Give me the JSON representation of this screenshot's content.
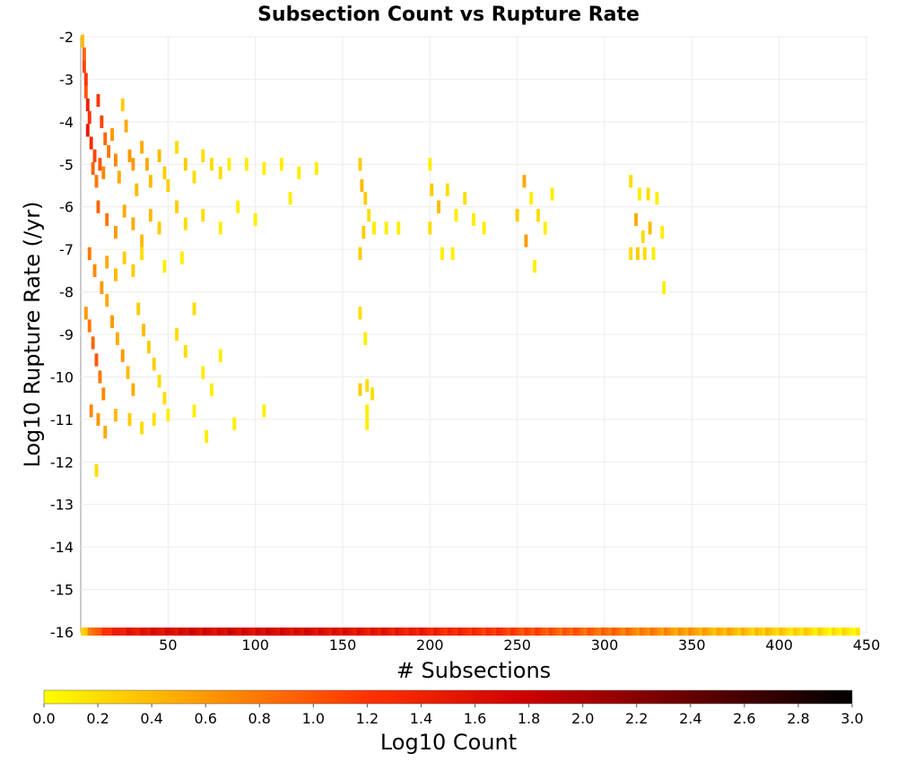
{
  "chart_data": {
    "type": "heatmap",
    "title": "Subsection Count vs Rupture Rate",
    "xlabel": "# Subsections",
    "ylabel": "Log10 Rupture Rate (/yr)",
    "xlim": [
      0,
      450
    ],
    "ylim": [
      -16,
      -2
    ],
    "x_ticks": [
      "50",
      "100",
      "150",
      "200",
      "250",
      "300",
      "350",
      "400",
      "450"
    ],
    "y_ticks": [
      "-2",
      "-3",
      "-4",
      "-5",
      "-6",
      "-7",
      "-8",
      "-9",
      "-10",
      "-11",
      "-12",
      "-13",
      "-14",
      "-15",
      "-16"
    ],
    "grid": true,
    "colorbar": {
      "label": "Log10 Count",
      "range": [
        0,
        3
      ],
      "ticks": [
        "0.0",
        "0.2",
        "0.4",
        "0.6",
        "0.8",
        "1.0",
        "1.2",
        "1.4",
        "1.6",
        "1.8",
        "2.0",
        "2.2",
        "2.4",
        "2.6",
        "2.8",
        "3.0"
      ],
      "colors": [
        "#ffff00",
        "#ff9900",
        "#ff3300",
        "#cc0000",
        "#660000",
        "#000000"
      ]
    },
    "cells": [
      [
        1,
        -2.1,
        0.4
      ],
      [
        2,
        -2.4,
        0.9
      ],
      [
        2,
        -2.7,
        1.1
      ],
      [
        3,
        -3.0,
        1.2
      ],
      [
        3,
        -3.3,
        1.0
      ],
      [
        4,
        -3.6,
        1.4
      ],
      [
        5,
        -3.9,
        1.2
      ],
      [
        4,
        -4.2,
        1.5
      ],
      [
        6,
        -4.5,
        1.3
      ],
      [
        8,
        -4.8,
        1.1
      ],
      [
        7,
        -5.1,
        0.9
      ],
      [
        9,
        -5.4,
        0.8
      ],
      [
        10,
        -3.5,
        1.2
      ],
      [
        12,
        -4.0,
        1.1
      ],
      [
        14,
        -4.4,
        0.9
      ],
      [
        16,
        -4.7,
        0.8
      ],
      [
        11,
        -5.0,
        1.0
      ],
      [
        13,
        -5.2,
        0.7
      ],
      [
        18,
        -4.3,
        0.6
      ],
      [
        20,
        -4.9,
        0.7
      ],
      [
        22,
        -5.3,
        0.5
      ],
      [
        24,
        -3.6,
        0.3
      ],
      [
        26,
        -4.1,
        0.5
      ],
      [
        28,
        -4.8,
        0.6
      ],
      [
        30,
        -5.0,
        0.6
      ],
      [
        32,
        -5.6,
        0.4
      ],
      [
        35,
        -4.6,
        0.5
      ],
      [
        38,
        -5.0,
        0.5
      ],
      [
        40,
        -5.4,
        0.4
      ],
      [
        45,
        -4.8,
        0.4
      ],
      [
        48,
        -5.2,
        0.3
      ],
      [
        50,
        -5.5,
        0.3
      ],
      [
        55,
        -4.6,
        0.2
      ],
      [
        60,
        -5.0,
        0.3
      ],
      [
        65,
        -5.3,
        0.2
      ],
      [
        70,
        -4.8,
        0.2
      ],
      [
        75,
        -5.0,
        0.2
      ],
      [
        80,
        -5.2,
        0.2
      ],
      [
        85,
        -5.0,
        0.1
      ],
      [
        95,
        -5.0,
        0.1
      ],
      [
        105,
        -5.1,
        0.1
      ],
      [
        115,
        -5.0,
        0.1
      ],
      [
        125,
        -5.2,
        0.1
      ],
      [
        135,
        -5.1,
        0.1
      ],
      [
        10,
        -6.0,
        0.9
      ],
      [
        15,
        -6.3,
        0.8
      ],
      [
        20,
        -6.6,
        0.6
      ],
      [
        25,
        -6.1,
        0.5
      ],
      [
        30,
        -6.4,
        0.5
      ],
      [
        35,
        -6.8,
        0.4
      ],
      [
        40,
        -6.2,
        0.4
      ],
      [
        45,
        -6.5,
        0.3
      ],
      [
        55,
        -6.0,
        0.3
      ],
      [
        60,
        -6.4,
        0.2
      ],
      [
        70,
        -6.2,
        0.2
      ],
      [
        80,
        -6.5,
        0.1
      ],
      [
        90,
        -6.0,
        0.1
      ],
      [
        100,
        -6.3,
        0.1
      ],
      [
        120,
        -5.8,
        0.1
      ],
      [
        5,
        -7.1,
        0.8
      ],
      [
        8,
        -7.5,
        0.7
      ],
      [
        12,
        -7.9,
        0.6
      ],
      [
        15,
        -7.3,
        0.5
      ],
      [
        20,
        -7.6,
        0.4
      ],
      [
        25,
        -7.2,
        0.3
      ],
      [
        30,
        -7.5,
        0.3
      ],
      [
        35,
        -7.1,
        0.2
      ],
      [
        48,
        -7.4,
        0.1
      ],
      [
        58,
        -7.2,
        0.1
      ],
      [
        3,
        -8.5,
        0.6
      ],
      [
        5,
        -8.8,
        0.8
      ],
      [
        7,
        -9.2,
        0.9
      ],
      [
        9,
        -9.6,
        1.0
      ],
      [
        11,
        -10.0,
        0.8
      ],
      [
        13,
        -10.4,
        0.7
      ],
      [
        15,
        -8.2,
        0.5
      ],
      [
        18,
        -8.7,
        0.6
      ],
      [
        21,
        -9.1,
        0.5
      ],
      [
        24,
        -9.5,
        0.6
      ],
      [
        27,
        -9.9,
        0.4
      ],
      [
        30,
        -10.3,
        0.5
      ],
      [
        33,
        -8.4,
        0.3
      ],
      [
        36,
        -8.9,
        0.4
      ],
      [
        39,
        -9.3,
        0.3
      ],
      [
        42,
        -9.7,
        0.3
      ],
      [
        45,
        -10.1,
        0.2
      ],
      [
        48,
        -10.5,
        0.2
      ],
      [
        55,
        -9.0,
        0.2
      ],
      [
        60,
        -9.4,
        0.2
      ],
      [
        65,
        -8.4,
        0.2
      ],
      [
        70,
        -9.9,
        0.1
      ],
      [
        75,
        -10.3,
        0.1
      ],
      [
        80,
        -9.5,
        0.1
      ],
      [
        6,
        -10.8,
        0.7
      ],
      [
        10,
        -11.0,
        0.6
      ],
      [
        14,
        -11.3,
        0.5
      ],
      [
        20,
        -10.9,
        0.4
      ],
      [
        28,
        -11.0,
        0.3
      ],
      [
        35,
        -11.2,
        0.2
      ],
      [
        42,
        -11.0,
        0.2
      ],
      [
        50,
        -10.9,
        0.1
      ],
      [
        65,
        -10.8,
        0.1
      ],
      [
        72,
        -11.4,
        0.1
      ],
      [
        88,
        -11.1,
        0.1
      ],
      [
        105,
        -10.8,
        0.1
      ],
      [
        9,
        -12.2,
        0.2
      ],
      [
        160,
        -5.0,
        0.3
      ],
      [
        161,
        -5.5,
        0.4
      ],
      [
        163,
        -5.8,
        0.3
      ],
      [
        165,
        -6.2,
        0.2
      ],
      [
        162,
        -6.6,
        0.3
      ],
      [
        160,
        -7.1,
        0.3
      ],
      [
        168,
        -6.5,
        0.1
      ],
      [
        175,
        -6.5,
        0.1
      ],
      [
        182,
        -6.5,
        0.1
      ],
      [
        160,
        -8.5,
        0.2
      ],
      [
        163,
        -9.1,
        0.1
      ],
      [
        160,
        -10.3,
        0.3
      ],
      [
        164,
        -10.2,
        0.2
      ],
      [
        167,
        -10.4,
        0.2
      ],
      [
        164,
        -10.8,
        0.1
      ],
      [
        164,
        -11.1,
        0.1
      ],
      [
        200,
        -5.0,
        0.1
      ],
      [
        201,
        -5.6,
        0.3
      ],
      [
        205,
        -6.0,
        0.4
      ],
      [
        210,
        -5.6,
        0.2
      ],
      [
        215,
        -6.2,
        0.1
      ],
      [
        220,
        -5.8,
        0.2
      ],
      [
        225,
        -6.3,
        0.1
      ],
      [
        231,
        -6.5,
        0.1
      ],
      [
        200,
        -6.5,
        0.2
      ],
      [
        207,
        -7.1,
        0.1
      ],
      [
        213,
        -7.1,
        0.1
      ],
      [
        254,
        -5.4,
        0.5
      ],
      [
        258,
        -5.8,
        0.1
      ],
      [
        262,
        -6.2,
        0.2
      ],
      [
        266,
        -6.5,
        0.1
      ],
      [
        255,
        -6.8,
        0.6
      ],
      [
        260,
        -7.4,
        0.1
      ],
      [
        250,
        -6.2,
        0.3
      ],
      [
        270,
        -5.7,
        0.1
      ],
      [
        315,
        -5.4,
        0.2
      ],
      [
        320,
        -5.7,
        0.1
      ],
      [
        325,
        -5.7,
        0.2
      ],
      [
        330,
        -5.8,
        0.1
      ],
      [
        318,
        -6.3,
        0.5
      ],
      [
        322,
        -6.7,
        0.2
      ],
      [
        326,
        -6.5,
        0.4
      ],
      [
        333,
        -6.6,
        0.1
      ],
      [
        315,
        -7.1,
        0.2
      ],
      [
        319,
        -7.1,
        0.3
      ],
      [
        323,
        -7.1,
        0.2
      ],
      [
        328,
        -7.1,
        0.1
      ],
      [
        334,
        -7.9,
        0.1
      ]
    ],
    "bottom_row": {
      "y": -16,
      "x_range": [
        1,
        445
      ],
      "profile": [
        [
          1,
          0.3
        ],
        [
          10,
          1.1
        ],
        [
          25,
          1.5
        ],
        [
          40,
          1.6
        ],
        [
          60,
          1.7
        ],
        [
          80,
          1.7
        ],
        [
          100,
          1.7
        ],
        [
          120,
          1.7
        ],
        [
          150,
          1.6
        ],
        [
          180,
          1.5
        ],
        [
          200,
          1.4
        ],
        [
          240,
          1.2
        ],
        [
          270,
          1.0
        ],
        [
          300,
          0.9
        ],
        [
          330,
          0.7
        ],
        [
          360,
          0.5
        ],
        [
          380,
          0.4
        ],
        [
          400,
          0.3
        ],
        [
          420,
          0.2
        ],
        [
          445,
          0.1
        ]
      ]
    }
  }
}
